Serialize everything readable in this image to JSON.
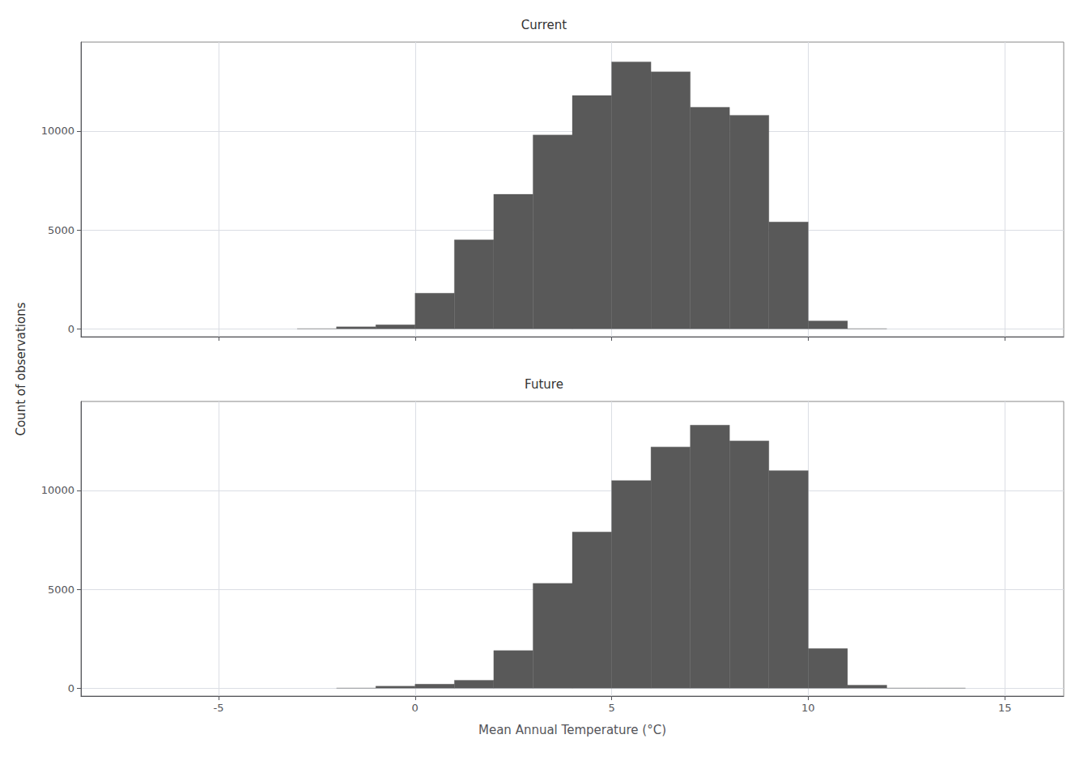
{
  "chart_data": [
    {
      "type": "histogram",
      "title": "Current",
      "bins": [
        -3,
        -2,
        -1,
        0,
        1,
        2,
        3,
        4,
        5,
        6,
        7,
        8,
        9,
        10,
        11,
        12
      ],
      "values": [
        0,
        100,
        200,
        1800,
        4500,
        6800,
        9800,
        11800,
        13500,
        13000,
        11200,
        10800,
        5400,
        400,
        0
      ],
      "color": "#595959",
      "ylabel": "Count of observations",
      "xlim": [
        -8.5,
        16.5
      ],
      "xticks": [
        -5,
        0,
        5,
        10,
        15
      ],
      "ylim": [
        -400,
        14500
      ],
      "yticks": [
        0,
        5000,
        10000
      ],
      "grid": true,
      "tick_labels": "y"
    },
    {
      "type": "histogram",
      "title": "Future",
      "bins": [
        -2,
        -1,
        0,
        1,
        2,
        3,
        4,
        5,
        6,
        7,
        8,
        9,
        10,
        11,
        12,
        13,
        14
      ],
      "values": [
        0,
        100,
        200,
        400,
        1900,
        5300,
        7900,
        10500,
        12200,
        13300,
        12500,
        11000,
        2000,
        150,
        0,
        0
      ],
      "color": "#595959",
      "xlabel": "Mean Annual Temperature (°C)",
      "xlim": [
        -8.5,
        16.5
      ],
      "xticks": [
        -5,
        0,
        5,
        10,
        15
      ],
      "ylim": [
        -400,
        14500
      ],
      "yticks": [
        0,
        5000,
        10000
      ],
      "grid": true
    }
  ]
}
